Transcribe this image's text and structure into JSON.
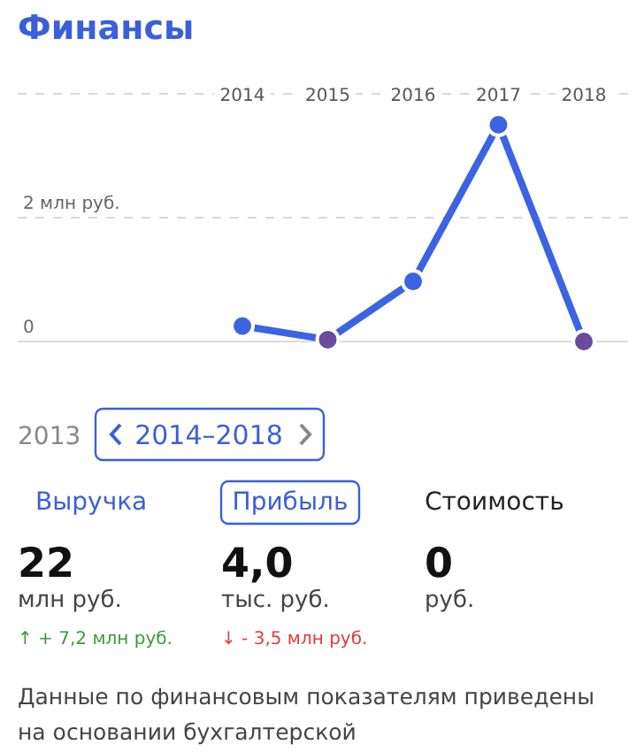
{
  "chart_data": {
    "type": "line",
    "title": "Финансы",
    "categories": [
      "2014",
      "2015",
      "2016",
      "2017",
      "2018"
    ],
    "series": [
      {
        "color": "#3b63e3",
        "colors": [
          "#3b63e3",
          "#6a4b9e",
          "#3b63e3",
          "#3b63e3",
          "#6a4b9e"
        ],
        "values": [
          0.25,
          0.03,
          0.97,
          3.5,
          0
        ]
      }
    ],
    "ylim": [
      0,
      4
    ],
    "yticks": [
      {
        "value": 0,
        "label": "0"
      },
      {
        "value": 2,
        "label": "2 млн руб."
      },
      {
        "value": 4,
        "label": null
      }
    ],
    "grid": "y",
    "marker": "circle",
    "line_style": "solid",
    "annotations": [
      "2013",
      "2014–2018",
      "Выручка",
      "Прибыль",
      "Стоимость",
      "22",
      "млн руб.",
      "4,0",
      "тыс. руб.",
      "0",
      "руб.",
      "↑ + 7,2 млн руб.",
      "↓ - 3,5 млн руб.",
      "Данные по финансовым показателям приведены на основании бухгалтерской"
    ]
  }
}
